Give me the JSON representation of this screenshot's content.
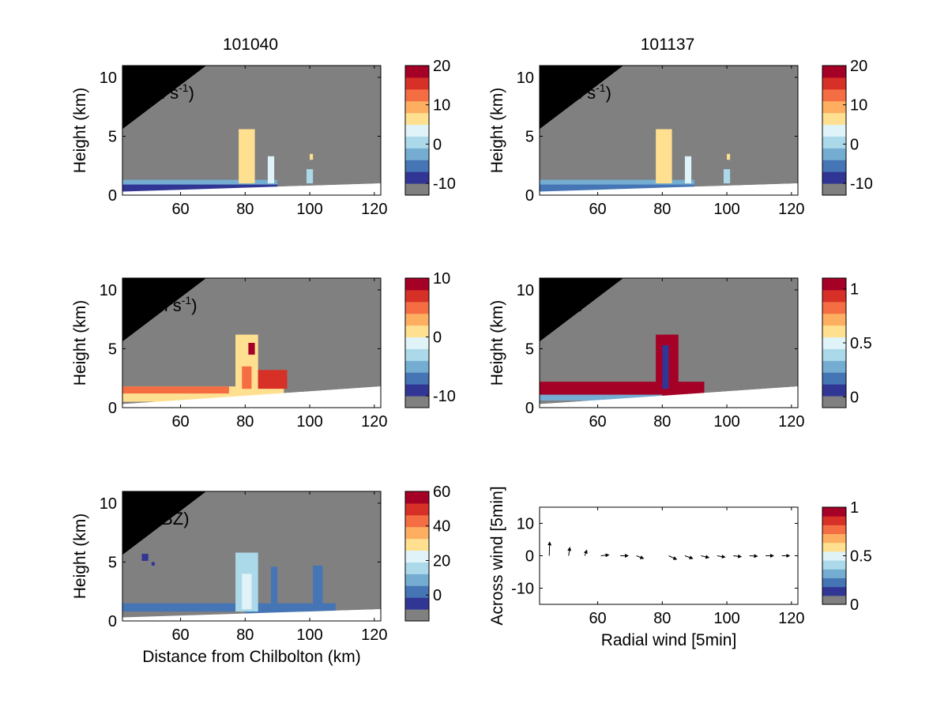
{
  "figure_titles": [
    "101040",
    "101137"
  ],
  "palette": [
    "#808080",
    "#313695",
    "#4575b4",
    "#74add1",
    "#abd9e9",
    "#e0f3f8",
    "#fee090",
    "#fdae61",
    "#f46d43",
    "#d73027",
    "#a50026"
  ],
  "mask_color": "#808080",
  "chart_data": [
    {
      "id": "u_left",
      "type": "heatmap",
      "title": "101040",
      "variable": "u",
      "unit": "m s",
      "unit_sup": "-1",
      "xlabel": "",
      "ylabel": "Height (km)",
      "xlim": [
        42,
        122
      ],
      "ylim": [
        0,
        11
      ],
      "xticks": [
        60,
        80,
        100,
        120
      ],
      "yticks": [
        0,
        5,
        10
      ],
      "colorbar": {
        "min": -13,
        "max": 20,
        "ticks": [
          20,
          10,
          0,
          -10
        ]
      },
      "echoes": [
        {
          "x": [
            42,
            90
          ],
          "y": [
            0.3,
            1.2
          ],
          "value": -9
        },
        {
          "x": [
            42,
            90
          ],
          "y": [
            0.9,
            1.3
          ],
          "value": -2
        },
        {
          "x": [
            78,
            83
          ],
          "y": [
            1.0,
            5.6
          ],
          "value": 6
        },
        {
          "x": [
            87,
            89
          ],
          "y": [
            1.0,
            3.3
          ],
          "value": 4
        },
        {
          "x": [
            100,
            101
          ],
          "y": [
            3.0,
            3.5
          ],
          "value": 5
        },
        {
          "x": [
            99,
            101
          ],
          "y": [
            1.0,
            2.2
          ],
          "value": 1
        }
      ]
    },
    {
      "id": "u_right",
      "type": "heatmap",
      "title": "101137",
      "variable": "u",
      "unit": "m s",
      "unit_sup": "-1",
      "xlabel": "",
      "ylabel": "Height (km)",
      "xlim": [
        42,
        122
      ],
      "ylim": [
        0,
        11
      ],
      "xticks": [
        60,
        80,
        100,
        120
      ],
      "yticks": [
        0,
        5,
        10
      ],
      "colorbar": {
        "min": -13,
        "max": 20,
        "ticks": [
          20,
          10,
          0,
          -10
        ]
      },
      "echoes": [
        {
          "x": [
            42,
            90
          ],
          "y": [
            0.3,
            1.2
          ],
          "value": -6
        },
        {
          "x": [
            42,
            90
          ],
          "y": [
            0.9,
            1.3
          ],
          "value": -2
        },
        {
          "x": [
            78,
            83
          ],
          "y": [
            1.0,
            5.6
          ],
          "value": 6
        },
        {
          "x": [
            87,
            89
          ],
          "y": [
            1.0,
            3.3
          ],
          "value": 4
        },
        {
          "x": [
            100,
            101
          ],
          "y": [
            3.0,
            3.5
          ],
          "value": 5
        },
        {
          "x": [
            99,
            101
          ],
          "y": [
            1.0,
            2.2
          ],
          "value": 1
        }
      ]
    },
    {
      "id": "w_left",
      "type": "heatmap",
      "title": "",
      "variable": "w",
      "unit": "m s",
      "unit_sup": "-1",
      "xlabel": "",
      "ylabel": "Height (km)",
      "xlim": [
        42,
        122
      ],
      "ylim": [
        0,
        11
      ],
      "xticks": [
        60,
        80,
        100,
        120
      ],
      "yticks": [
        0,
        5,
        10
      ],
      "colorbar": {
        "min": -12,
        "max": 10,
        "ticks": [
          10,
          0,
          -10
        ]
      },
      "echoes": [
        {
          "x": [
            42,
            92
          ],
          "y": [
            0.5,
            1.8
          ],
          "value": 1
        },
        {
          "x": [
            42,
            75
          ],
          "y": [
            1.2,
            1.8
          ],
          "value": 4
        },
        {
          "x": [
            77,
            84
          ],
          "y": [
            1.5,
            6.2
          ],
          "value": 1
        },
        {
          "x": [
            79,
            82
          ],
          "y": [
            1.6,
            3.5
          ],
          "value": 4
        },
        {
          "x": [
            81,
            83
          ],
          "y": [
            4.5,
            5.5
          ],
          "value": 8
        },
        {
          "x": [
            84,
            93
          ],
          "y": [
            1.6,
            3.2
          ],
          "value": 6
        }
      ]
    },
    {
      "id": "error_right",
      "type": "heatmap",
      "title": "",
      "variable": "error",
      "unit": "",
      "unit_sup": "",
      "xlabel": "",
      "ylabel": "Height (km)",
      "xlim": [
        42,
        122
      ],
      "ylim": [
        0,
        11
      ],
      "xticks": [
        60,
        80,
        100,
        120
      ],
      "yticks": [
        0,
        5,
        10
      ],
      "colorbar": {
        "min": -0.1,
        "max": 1.1,
        "ticks": [
          1,
          0.5,
          0
        ]
      },
      "echoes": [
        {
          "x": [
            42,
            93
          ],
          "y": [
            0.6,
            2.2
          ],
          "value": 1.05
        },
        {
          "x": [
            42,
            80
          ],
          "y": [
            0.6,
            1.1
          ],
          "value": 0.3
        },
        {
          "x": [
            78,
            85
          ],
          "y": [
            1.5,
            6.2
          ],
          "value": 1.05
        },
        {
          "x": [
            80,
            82
          ],
          "y": [
            1.6,
            5.3
          ],
          "value": 0.1
        }
      ]
    },
    {
      "id": "z_left",
      "type": "heatmap",
      "title": "",
      "variable": "Z",
      "unit": "(dBZ)",
      "unit_sup": "",
      "xlabel": "Distance from Chilbolton (km)",
      "ylabel": "Height (km)",
      "xlim": [
        42,
        122
      ],
      "ylim": [
        0,
        11
      ],
      "xticks": [
        60,
        80,
        100,
        120
      ],
      "yticks": [
        0,
        5,
        10
      ],
      "colorbar": {
        "min": -15,
        "max": 60,
        "ticks": [
          60,
          40,
          20,
          0
        ]
      },
      "echoes": [
        {
          "x": [
            42,
            108
          ],
          "y": [
            0.3,
            1.5
          ],
          "value": 2
        },
        {
          "x": [
            42,
            80
          ],
          "y": [
            0.3,
            0.8
          ],
          "value": -10
        },
        {
          "x": [
            77,
            84
          ],
          "y": [
            0.8,
            5.8
          ],
          "value": 14
        },
        {
          "x": [
            79,
            82
          ],
          "y": [
            1.0,
            4.0
          ],
          "value": 22
        },
        {
          "x": [
            88,
            90
          ],
          "y": [
            0.9,
            4.6
          ],
          "value": 5
        },
        {
          "x": [
            101,
            104
          ],
          "y": [
            0.9,
            4.7
          ],
          "value": 3
        },
        {
          "x": [
            48,
            50
          ],
          "y": [
            5.1,
            5.7
          ],
          "value": -5
        },
        {
          "x": [
            51,
            52
          ],
          "y": [
            4.7,
            5.0
          ],
          "value": -5
        }
      ]
    },
    {
      "id": "wind_right",
      "type": "scatter",
      "title": "",
      "variable": "",
      "unit": "",
      "unit_sup": "",
      "xlabel": "Radial wind [5min]",
      "ylabel": "Across wind [5min]",
      "xlim": [
        42,
        122
      ],
      "ylim": [
        -15,
        15
      ],
      "xticks": [
        60,
        80,
        100,
        120
      ],
      "yticks": [
        -10,
        0,
        10
      ],
      "colorbar": {
        "min": 0,
        "max": 1,
        "ticks": [
          1,
          0.5,
          0
        ]
      },
      "vectors": [
        {
          "x": 45,
          "y": 0,
          "u": 0.1,
          "v": 3.0
        },
        {
          "x": 51,
          "y": 0,
          "u": 0.3,
          "v": 1.8
        },
        {
          "x": 56,
          "y": 0,
          "u": 0.5,
          "v": 1.2
        },
        {
          "x": 61,
          "y": 0,
          "u": 2.0,
          "v": 0.2
        },
        {
          "x": 67,
          "y": 0,
          "u": 2.0,
          "v": 0.0
        },
        {
          "x": 72,
          "y": 0,
          "u": 1.8,
          "v": -0.6
        },
        {
          "x": 82,
          "y": 0,
          "u": 2.0,
          "v": -0.8
        },
        {
          "x": 87,
          "y": 0,
          "u": 2.0,
          "v": -0.6
        },
        {
          "x": 92,
          "y": 0,
          "u": 2.0,
          "v": -0.4
        },
        {
          "x": 97,
          "y": 0,
          "u": 2.0,
          "v": -0.3
        },
        {
          "x": 102,
          "y": 0,
          "u": 2.0,
          "v": -0.2
        },
        {
          "x": 107,
          "y": 0,
          "u": 2.0,
          "v": -0.1
        },
        {
          "x": 112,
          "y": 0,
          "u": 2.0,
          "v": 0.0
        },
        {
          "x": 117,
          "y": 0,
          "u": 2.0,
          "v": 0.0
        }
      ]
    }
  ]
}
